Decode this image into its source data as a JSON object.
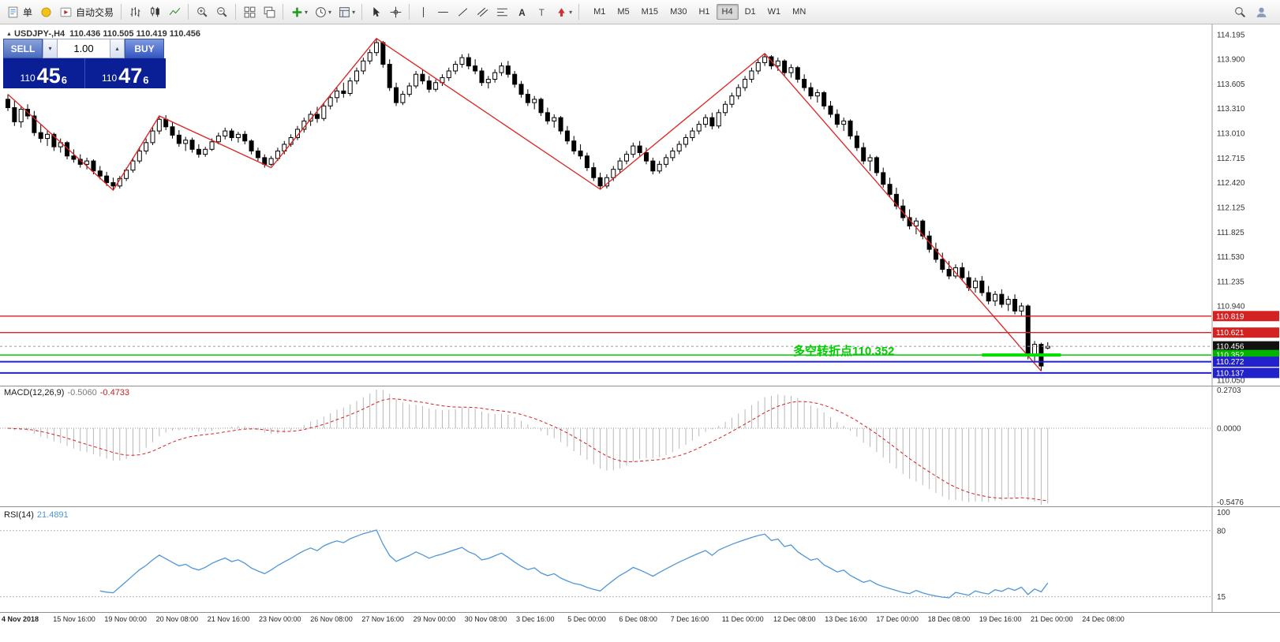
{
  "toolbar": {
    "order_label": "单",
    "autotrade_label": "自动交易",
    "timeframes": [
      "M1",
      "M5",
      "M15",
      "M30",
      "H1",
      "H4",
      "D1",
      "W1",
      "MN"
    ],
    "active_timeframe": "H4"
  },
  "icons": {
    "caret_down": "▾",
    "caret_up": "▴",
    "triangle_up": "▲"
  },
  "trade_panel": {
    "sell_label": "SELL",
    "buy_label": "BUY",
    "volume": "1.00",
    "bid_prefix": "110",
    "bid_big": "45",
    "bid_sup": "6",
    "ask_prefix": "110",
    "ask_big": "47",
    "ask_sup": "6"
  },
  "chart_header": {
    "symbol": "USDJPY-,H4",
    "ohlc": "110.436 110.505 110.419 110.456"
  },
  "annotation": {
    "text": "多空转折点110.352",
    "color": "#00cc00"
  },
  "indicators": {
    "macd": {
      "name": "MACD(12,26,9)",
      "main": "-0.5060",
      "signal": "-0.4733"
    },
    "rsi": {
      "name": "RSI(14)",
      "value": "21.4891"
    }
  },
  "axes": {
    "price_labels": [
      [
        114.195,
        "114.195"
      ],
      [
        113.9,
        "113.900"
      ],
      [
        113.605,
        "113.605"
      ],
      [
        113.31,
        "113.310"
      ],
      [
        113.01,
        "113.010"
      ],
      [
        112.715,
        "112.715"
      ],
      [
        112.42,
        "112.420"
      ],
      [
        112.125,
        "112.125"
      ],
      [
        111.825,
        "111.825"
      ],
      [
        111.53,
        "111.530"
      ],
      [
        111.235,
        "111.235"
      ],
      [
        110.94,
        "110.940"
      ],
      [
        110.05,
        "110.050"
      ]
    ],
    "price_tags": [
      [
        110.819,
        "110.819",
        "#d42222",
        "#ffffff"
      ],
      [
        110.621,
        "110.621",
        "#d42222",
        "#ffffff"
      ],
      [
        110.456,
        "110.456",
        "#111111",
        "#ffffff"
      ],
      [
        110.352,
        "110.352",
        "#00b400",
        "#ffffff"
      ],
      [
        110.272,
        "110.272",
        "#2222cc",
        "#ffffff"
      ],
      [
        110.137,
        "110.137",
        "#2222cc",
        "#ffffff"
      ]
    ],
    "macd_labels": [
      "0.2703",
      "0.0000",
      "-0.5476"
    ],
    "rsi_labels": [
      "100",
      "80",
      "15"
    ],
    "time_labels": [
      "4 Nov 2018",
      "15 Nov 16:00",
      "19 Nov 00:00",
      "20 Nov 08:00",
      "21 Nov 16:00",
      "23 Nov 00:00",
      "26 Nov 08:00",
      "27 Nov 16:00",
      "29 Nov 00:00",
      "30 Nov 08:00",
      "3 Dec 16:00",
      "5 Dec 00:00",
      "6 Dec 08:00",
      "7 Dec 16:00",
      "11 Dec 00:00",
      "12 Dec 08:00",
      "13 Dec 16:00",
      "17 Dec 00:00",
      "18 Dec 08:00",
      "19 Dec 16:00",
      "21 Dec 00:00",
      "24 Dec 08:00"
    ]
  },
  "chart_data": {
    "type": "candlestick",
    "symbol": "USDJPY",
    "timeframe": "H4",
    "title": "USDJPY-,H4 110.436 110.505 110.419 110.456",
    "price_range": [
      110.05,
      114.195
    ],
    "current_price": 110.456,
    "colors": {
      "candle_up": "#ffffff",
      "candle_down": "#000000",
      "wick": "#000000",
      "zigzag": "#e02020",
      "histogram": "#b8b8b8",
      "macd_signal": "#d82020",
      "rsi_line": "#4f97d6",
      "current_line": "#9a9a9a"
    },
    "ohlc": [
      [
        113.42,
        113.48,
        113.28,
        113.32
      ],
      [
        113.32,
        113.4,
        113.1,
        113.15
      ],
      [
        113.15,
        113.33,
        113.08,
        113.3
      ],
      [
        113.3,
        113.36,
        113.18,
        113.22
      ],
      [
        113.22,
        113.28,
        112.98,
        113.02
      ],
      [
        113.02,
        113.12,
        112.9,
        112.95
      ],
      [
        112.95,
        113.05,
        112.86,
        113.0
      ],
      [
        113.0,
        113.02,
        112.8,
        112.85
      ],
      [
        112.85,
        112.95,
        112.78,
        112.9
      ],
      [
        112.9,
        112.92,
        112.7,
        112.74
      ],
      [
        112.74,
        112.82,
        112.66,
        112.7
      ],
      [
        112.7,
        112.76,
        112.6,
        112.64
      ],
      [
        112.64,
        112.72,
        112.58,
        112.68
      ],
      [
        112.68,
        112.7,
        112.52,
        112.56
      ],
      [
        112.56,
        112.62,
        112.46,
        112.5
      ],
      [
        112.5,
        112.55,
        112.38,
        112.42
      ],
      [
        112.42,
        112.48,
        112.33,
        112.38
      ],
      [
        112.38,
        112.5,
        112.35,
        112.47
      ],
      [
        112.47,
        112.6,
        112.44,
        112.57
      ],
      [
        112.57,
        112.72,
        112.54,
        112.68
      ],
      [
        112.68,
        112.85,
        112.65,
        112.8
      ],
      [
        112.8,
        112.95,
        112.76,
        112.9
      ],
      [
        112.9,
        113.08,
        112.87,
        113.04
      ],
      [
        113.04,
        113.22,
        113.0,
        113.18
      ],
      [
        113.18,
        113.23,
        113.05,
        113.09
      ],
      [
        113.09,
        113.14,
        112.95,
        112.99
      ],
      [
        112.99,
        113.05,
        112.85,
        112.89
      ],
      [
        112.89,
        112.97,
        112.8,
        112.93
      ],
      [
        112.93,
        112.96,
        112.78,
        112.82
      ],
      [
        112.82,
        112.88,
        112.72,
        112.76
      ],
      [
        112.76,
        112.85,
        112.73,
        112.82
      ],
      [
        112.82,
        112.95,
        112.8,
        112.91
      ],
      [
        112.91,
        113.02,
        112.88,
        112.98
      ],
      [
        112.98,
        113.08,
        112.94,
        113.04
      ],
      [
        113.04,
        113.07,
        112.92,
        112.96
      ],
      [
        112.96,
        113.03,
        112.9,
        113.0
      ],
      [
        113.0,
        113.04,
        112.88,
        112.92
      ],
      [
        112.92,
        112.94,
        112.76,
        112.8
      ],
      [
        112.8,
        112.84,
        112.68,
        112.72
      ],
      [
        112.72,
        112.76,
        112.6,
        112.64
      ],
      [
        112.64,
        112.74,
        112.62,
        112.71
      ],
      [
        112.71,
        112.84,
        112.68,
        112.8
      ],
      [
        112.8,
        112.92,
        112.76,
        112.88
      ],
      [
        112.88,
        113.0,
        112.85,
        112.96
      ],
      [
        112.96,
        113.1,
        112.93,
        113.06
      ],
      [
        113.06,
        113.2,
        113.02,
        113.16
      ],
      [
        113.16,
        113.28,
        113.1,
        113.24
      ],
      [
        113.24,
        113.33,
        113.14,
        113.19
      ],
      [
        113.19,
        113.38,
        113.16,
        113.34
      ],
      [
        113.34,
        113.48,
        113.3,
        113.44
      ],
      [
        113.44,
        113.56,
        113.38,
        113.52
      ],
      [
        113.52,
        113.62,
        113.44,
        113.49
      ],
      [
        113.49,
        113.68,
        113.46,
        113.64
      ],
      [
        113.64,
        113.8,
        113.6,
        113.76
      ],
      [
        113.76,
        113.92,
        113.72,
        113.88
      ],
      [
        113.88,
        114.02,
        113.84,
        113.98
      ],
      [
        113.98,
        114.15,
        113.94,
        114.1
      ],
      [
        114.1,
        114.12,
        113.8,
        113.84
      ],
      [
        113.84,
        113.9,
        113.52,
        113.56
      ],
      [
        113.56,
        113.62,
        113.34,
        113.38
      ],
      [
        113.38,
        113.52,
        113.35,
        113.48
      ],
      [
        113.48,
        113.62,
        113.45,
        113.58
      ],
      [
        113.58,
        113.76,
        113.55,
        113.72
      ],
      [
        113.72,
        113.78,
        113.6,
        113.64
      ],
      [
        113.64,
        113.7,
        113.5,
        113.54
      ],
      [
        113.54,
        113.66,
        113.51,
        113.62
      ],
      [
        113.62,
        113.72,
        113.58,
        113.68
      ],
      [
        113.68,
        113.8,
        113.64,
        113.76
      ],
      [
        113.76,
        113.88,
        113.72,
        113.84
      ],
      [
        113.84,
        113.96,
        113.8,
        113.92
      ],
      [
        113.92,
        113.97,
        113.78,
        113.82
      ],
      [
        113.82,
        113.9,
        113.72,
        113.76
      ],
      [
        113.76,
        113.8,
        113.58,
        113.62
      ],
      [
        113.62,
        113.7,
        113.55,
        113.66
      ],
      [
        113.66,
        113.78,
        113.62,
        113.74
      ],
      [
        113.74,
        113.86,
        113.7,
        113.82
      ],
      [
        113.82,
        113.88,
        113.68,
        113.72
      ],
      [
        113.72,
        113.76,
        113.56,
        113.6
      ],
      [
        113.6,
        113.64,
        113.44,
        113.48
      ],
      [
        113.48,
        113.54,
        113.34,
        113.38
      ],
      [
        113.38,
        113.46,
        113.3,
        113.42
      ],
      [
        113.42,
        113.44,
        113.22,
        113.26
      ],
      [
        113.26,
        113.32,
        113.12,
        113.16
      ],
      [
        113.16,
        113.24,
        113.08,
        113.2
      ],
      [
        113.2,
        113.22,
        113.0,
        113.04
      ],
      [
        113.04,
        113.1,
        112.88,
        112.92
      ],
      [
        112.92,
        112.98,
        112.76,
        112.8
      ],
      [
        112.8,
        112.88,
        112.7,
        112.74
      ],
      [
        112.74,
        112.78,
        112.56,
        112.6
      ],
      [
        112.6,
        112.66,
        112.44,
        112.48
      ],
      [
        112.48,
        112.54,
        112.34,
        112.38
      ],
      [
        112.38,
        112.52,
        112.35,
        112.48
      ],
      [
        112.48,
        112.62,
        112.44,
        112.58
      ],
      [
        112.58,
        112.72,
        112.54,
        112.68
      ],
      [
        112.68,
        112.8,
        112.64,
        112.76
      ],
      [
        112.76,
        112.9,
        112.72,
        112.86
      ],
      [
        112.86,
        112.92,
        112.74,
        112.78
      ],
      [
        112.78,
        112.84,
        112.64,
        112.68
      ],
      [
        112.68,
        112.72,
        112.52,
        112.56
      ],
      [
        112.56,
        112.68,
        112.53,
        112.64
      ],
      [
        112.64,
        112.76,
        112.6,
        112.72
      ],
      [
        112.72,
        112.84,
        112.68,
        112.8
      ],
      [
        112.8,
        112.92,
        112.76,
        112.88
      ],
      [
        112.88,
        113.0,
        112.84,
        112.96
      ],
      [
        112.96,
        113.08,
        112.92,
        113.04
      ],
      [
        113.04,
        113.16,
        113.0,
        113.12
      ],
      [
        113.12,
        113.24,
        113.08,
        113.2
      ],
      [
        113.2,
        113.26,
        113.06,
        113.1
      ],
      [
        113.1,
        113.3,
        113.07,
        113.26
      ],
      [
        113.26,
        113.4,
        113.22,
        113.36
      ],
      [
        113.36,
        113.5,
        113.32,
        113.46
      ],
      [
        113.46,
        113.6,
        113.42,
        113.56
      ],
      [
        113.56,
        113.7,
        113.52,
        113.66
      ],
      [
        113.66,
        113.8,
        113.62,
        113.76
      ],
      [
        113.76,
        113.9,
        113.72,
        113.86
      ],
      [
        113.86,
        113.97,
        113.82,
        113.93
      ],
      [
        113.93,
        113.95,
        113.78,
        113.82
      ],
      [
        113.82,
        113.92,
        113.76,
        113.88
      ],
      [
        113.88,
        113.9,
        113.7,
        113.74
      ],
      [
        113.74,
        113.84,
        113.68,
        113.8
      ],
      [
        113.8,
        113.82,
        113.62,
        113.66
      ],
      [
        113.66,
        113.72,
        113.52,
        113.56
      ],
      [
        113.56,
        113.62,
        113.42,
        113.46
      ],
      [
        113.46,
        113.54,
        113.38,
        113.5
      ],
      [
        113.5,
        113.52,
        113.3,
        113.34
      ],
      [
        113.34,
        113.4,
        113.2,
        113.24
      ],
      [
        113.24,
        113.3,
        113.08,
        113.12
      ],
      [
        113.12,
        113.2,
        113.04,
        113.16
      ],
      [
        113.16,
        113.18,
        112.94,
        112.98
      ],
      [
        112.98,
        113.04,
        112.8,
        112.84
      ],
      [
        112.84,
        112.9,
        112.64,
        112.68
      ],
      [
        112.68,
        112.76,
        112.56,
        112.72
      ],
      [
        112.72,
        112.74,
        112.5,
        112.54
      ],
      [
        112.54,
        112.6,
        112.36,
        112.4
      ],
      [
        112.4,
        112.48,
        112.24,
        112.28
      ],
      [
        112.28,
        112.36,
        112.1,
        112.14
      ],
      [
        112.14,
        112.22,
        111.96,
        112.0
      ],
      [
        112.0,
        112.1,
        111.86,
        111.9
      ],
      [
        111.9,
        112.0,
        111.8,
        111.96
      ],
      [
        111.96,
        111.98,
        111.74,
        111.78
      ],
      [
        111.78,
        111.84,
        111.58,
        111.62
      ],
      [
        111.62,
        111.7,
        111.46,
        111.5
      ],
      [
        111.5,
        111.58,
        111.34,
        111.38
      ],
      [
        111.38,
        111.48,
        111.26,
        111.3
      ],
      [
        111.3,
        111.44,
        111.27,
        111.4
      ],
      [
        111.4,
        111.46,
        111.24,
        111.28
      ],
      [
        111.28,
        111.36,
        111.12,
        111.16
      ],
      [
        111.16,
        111.28,
        111.1,
        111.24
      ],
      [
        111.24,
        111.3,
        111.06,
        111.1
      ],
      [
        111.1,
        111.18,
        110.96,
        111.0
      ],
      [
        111.0,
        111.12,
        110.94,
        111.08
      ],
      [
        111.08,
        111.14,
        110.92,
        110.96
      ],
      [
        110.96,
        111.06,
        110.88,
        111.02
      ],
      [
        111.02,
        111.08,
        110.84,
        110.88
      ],
      [
        110.88,
        110.98,
        110.82,
        110.94
      ],
      [
        110.94,
        110.96,
        110.3,
        110.35
      ],
      [
        110.35,
        110.52,
        110.28,
        110.48
      ],
      [
        110.48,
        110.5,
        110.16,
        110.22
      ],
      [
        110.436,
        110.505,
        110.419,
        110.456
      ]
    ],
    "zigzag": [
      [
        0,
        113.48
      ],
      [
        16,
        112.33
      ],
      [
        23,
        113.22
      ],
      [
        40,
        112.6
      ],
      [
        56,
        114.15
      ],
      [
        90,
        112.34
      ],
      [
        115,
        113.97
      ],
      [
        157,
        110.16
      ]
    ],
    "hlines": [
      [
        110.819,
        "#dd2020",
        1.4
      ],
      [
        110.621,
        "#dd2020",
        1.4
      ],
      [
        110.352,
        "#00cc00",
        1.6
      ],
      [
        110.272,
        "#2222cc",
        2
      ],
      [
        110.137,
        "#2222cc",
        2
      ]
    ],
    "green_segment": {
      "price": 110.352,
      "from_index": 148,
      "to_index": 160,
      "color": "#00e000",
      "width": 4
    },
    "macd": {
      "params": [
        12,
        26,
        9
      ],
      "main": -0.506,
      "signal_value": -0.4733,
      "axis_max": 0.2703,
      "axis_min": -0.5476
    },
    "rsi": {
      "period": 14,
      "value": 21.4891,
      "levels": [
        80,
        15
      ],
      "axis": [
        100,
        0
      ]
    }
  }
}
